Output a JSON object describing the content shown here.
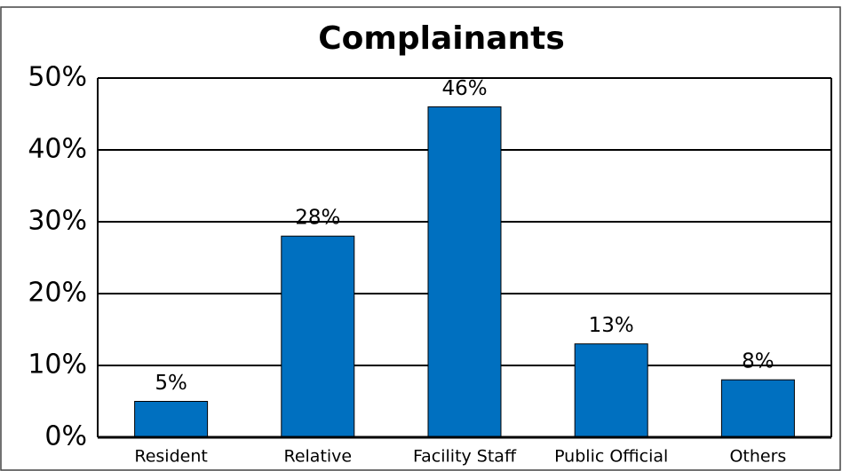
{
  "chart_data": {
    "type": "bar",
    "title": "Complainants",
    "categories": [
      "Resident",
      "Relative",
      "Facility Staff",
      "Public Official",
      "Others"
    ],
    "values": [
      5,
      28,
      46,
      13,
      8
    ],
    "value_labels": [
      "5%",
      "28%",
      "46%",
      "13%",
      "8%"
    ],
    "color": "#0070c0",
    "ylim": [
      0,
      50
    ],
    "yticks": [
      {
        "value": 0,
        "label": "0%"
      },
      {
        "value": 10,
        "label": "10%"
      },
      {
        "value": 20,
        "label": "20%"
      },
      {
        "value": 30,
        "label": "30%"
      },
      {
        "value": 40,
        "label": "40%"
      },
      {
        "value": 50,
        "label": "50%"
      }
    ],
    "grid": true
  }
}
